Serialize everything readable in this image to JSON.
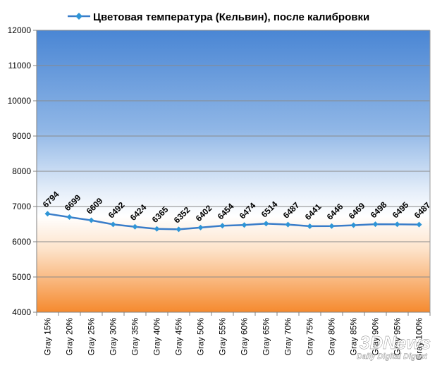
{
  "chart_data": {
    "type": "line",
    "title": "",
    "xlabel": "",
    "ylabel": "",
    "categories": [
      "Gray 15%",
      "Gray 20%",
      "Gray 25%",
      "Gray 30%",
      "Gray 35%",
      "Gray 40%",
      "Gray 45%",
      "Gray 50%",
      "Gray 55%",
      "Gray 60%",
      "Gray 65%",
      "Gray 70%",
      "Gray 75%",
      "Gray 80%",
      "Gray 85%",
      "Gray 90%",
      "Gray 95%",
      "Gray 100%"
    ],
    "series": [
      {
        "name": "Цветовая температура (Кельвин), после калибровки",
        "color": "#3a7dc9",
        "values": [
          6794,
          6699,
          6609,
          6492,
          6424,
          6365,
          6352,
          6402,
          6454,
          6474,
          6514,
          6487,
          6441,
          6446,
          6469,
          6498,
          6495,
          6487
        ]
      }
    ],
    "ylim": [
      4000,
      12000
    ],
    "yticks": [
      4000,
      5000,
      6000,
      7000,
      8000,
      9000,
      10000,
      11000,
      12000
    ],
    "grid": true,
    "legend_position": "top",
    "background": {
      "top_color": "#4a86d4",
      "bottom_color": "#f58a2e"
    }
  },
  "watermark": {
    "logo_text": "3DNews",
    "tagline": "Daily Digital Digest"
  }
}
